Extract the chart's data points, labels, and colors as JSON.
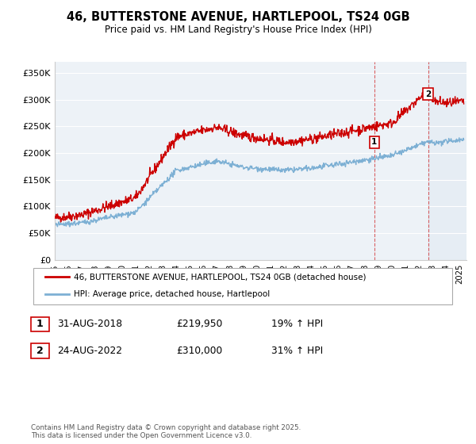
{
  "title": "46, BUTTERSTONE AVENUE, HARTLEPOOL, TS24 0GB",
  "subtitle": "Price paid vs. HM Land Registry's House Price Index (HPI)",
  "ylabel_ticks": [
    "£0",
    "£50K",
    "£100K",
    "£150K",
    "£200K",
    "£250K",
    "£300K",
    "£350K"
  ],
  "ylim": [
    0,
    370000
  ],
  "xlim_start": 1995.0,
  "xlim_end": 2025.5,
  "red_color": "#cc0000",
  "blue_color": "#7db0d4",
  "marker1_year": 2018.67,
  "marker2_year": 2022.65,
  "legend_line1": "46, BUTTERSTONE AVENUE, HARTLEPOOL, TS24 0GB (detached house)",
  "legend_line2": "HPI: Average price, detached house, Hartlepool",
  "ann1_label": "1",
  "ann1_date": "31-AUG-2018",
  "ann1_price": "£219,950",
  "ann1_hpi": "19% ↑ HPI",
  "ann2_label": "2",
  "ann2_date": "24-AUG-2022",
  "ann2_price": "£310,000",
  "ann2_hpi": "31% ↑ HPI",
  "footnote": "Contains HM Land Registry data © Crown copyright and database right 2025.\nThis data is licensed under the Open Government Licence v3.0.",
  "background_color": "#edf2f7"
}
